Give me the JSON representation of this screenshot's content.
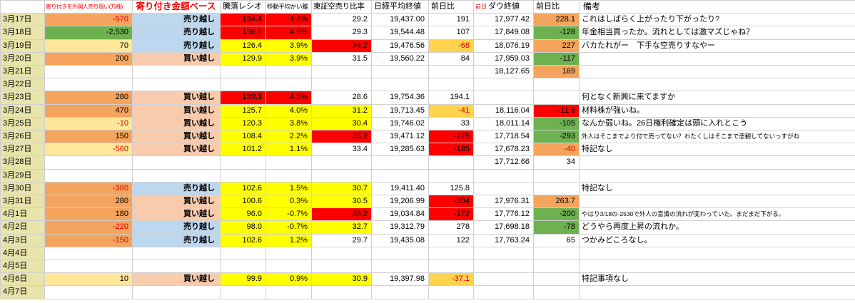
{
  "columns": {
    "b_header": "寄り付きを外国人売り買い(万株)",
    "c_header": "寄り付き金額ベース",
    "d_header": "騰落レシオ",
    "e_header": "移動平均かい離",
    "f_header": "東証空売り比率",
    "g_header": "日経平均終値",
    "h_header": "前日比",
    "i_header_prefix": "前日",
    "i_header": "ダウ終値",
    "j_header": "前日比",
    "k_header": "備考"
  },
  "colors": {
    "org": "#f4a45c",
    "peach": "#f8cbad",
    "blue": "#bdd7ee",
    "green": "#6eb150",
    "pale": "#ffe699",
    "red": "#fe0000",
    "yel": "#ffff00",
    "gold": "#ffd34d",
    "date_bg": "#e8e4ab",
    "grid": "#d0d0d0",
    "header_red": "#ff0000",
    "neg_text": "#e00000"
  },
  "rows": [
    {
      "date": "3月17日",
      "b": [
        "-570",
        "org"
      ],
      "c": [
        "売り越し",
        "blue"
      ],
      "d": [
        "134.4",
        "red"
      ],
      "e": [
        "4.4%",
        "red"
      ],
      "f": [
        "29.2",
        ""
      ],
      "g": [
        "19,437.00",
        ""
      ],
      "h": [
        "191",
        ""
      ],
      "i": [
        "17,977.42",
        ""
      ],
      "j": [
        "228.1",
        "org"
      ],
      "k": [
        "これはしばらく上がったり下がったり?",
        ""
      ]
    },
    {
      "date": "3月18日",
      "b": [
        "-2,530",
        "green"
      ],
      "c": [
        "売り越し",
        "blue"
      ],
      "d": [
        "136.1",
        "red"
      ],
      "e": [
        "4.5%",
        "red"
      ],
      "f": [
        "29.3",
        ""
      ],
      "g": [
        "19,544.48",
        ""
      ],
      "h": [
        "107",
        ""
      ],
      "i": [
        "17,849.08",
        ""
      ],
      "j": [
        "-128",
        "green"
      ],
      "k": [
        "年金相当買ったか。流れとしては激マズじゃね？",
        ""
      ]
    },
    {
      "date": "3月19日",
      "b": [
        "70",
        "pale"
      ],
      "c": [
        "売り越し",
        "blue"
      ],
      "d": [
        "126.4",
        "yel"
      ],
      "e": [
        "3.9%",
        "yel"
      ],
      "f": [
        "34.2",
        "red"
      ],
      "g": [
        "19,476.56",
        ""
      ],
      "h": [
        "-68",
        "gold"
      ],
      "i": [
        "18,076.19",
        ""
      ],
      "j": [
        "227",
        "org"
      ],
      "k": [
        "バカたれがー　下手な空売りすなやー",
        ""
      ]
    },
    {
      "date": "3月20日",
      "b": [
        "200",
        "org"
      ],
      "c": [
        "買い越し",
        "peach"
      ],
      "d": [
        "129.9",
        "yel"
      ],
      "e": [
        "3.9%",
        "yel"
      ],
      "f": [
        "31.5",
        ""
      ],
      "g": [
        "19,560.22",
        ""
      ],
      "h": [
        "84",
        ""
      ],
      "i": [
        "17,959.03",
        ""
      ],
      "j": [
        "-117",
        "green"
      ],
      "k": [
        "",
        ""
      ]
    },
    {
      "date": "3月21日",
      "b": [
        "",
        ""
      ],
      "c": [
        "",
        ""
      ],
      "d": [
        "",
        ""
      ],
      "e": [
        "",
        ""
      ],
      "f": [
        "",
        ""
      ],
      "g": [
        "",
        ""
      ],
      "h": [
        "",
        ""
      ],
      "i": [
        "18,127.65",
        ""
      ],
      "j": [
        "169",
        "org"
      ],
      "k": [
        "",
        ""
      ]
    },
    {
      "date": "3月22日",
      "b": [
        "",
        ""
      ],
      "c": [
        "",
        ""
      ],
      "d": [
        "",
        ""
      ],
      "e": [
        "",
        ""
      ],
      "f": [
        "",
        ""
      ],
      "g": [
        "",
        ""
      ],
      "h": [
        "",
        ""
      ],
      "i": [
        "",
        ""
      ],
      "j": [
        "",
        ""
      ],
      "k": [
        "",
        ""
      ]
    },
    {
      "date": "3月23日",
      "b": [
        "280",
        "org"
      ],
      "c": [
        "買い越し",
        "peach"
      ],
      "d": [
        "130.3",
        "red"
      ],
      "e": [
        "4.5%",
        "red"
      ],
      "f": [
        "28.6",
        ""
      ],
      "g": [
        "19,754.36",
        ""
      ],
      "h": [
        "194.1",
        ""
      ],
      "i": [
        "",
        ""
      ],
      "j": [
        "",
        ""
      ],
      "k": [
        "何となく新興に来てますか",
        ""
      ]
    },
    {
      "date": "3月24日",
      "b": [
        "470",
        "org"
      ],
      "c": [
        "買い越し",
        "peach"
      ],
      "d": [
        "125.7",
        "yel"
      ],
      "e": [
        "4.0%",
        "yel"
      ],
      "f": [
        "31.2",
        "yel"
      ],
      "g": [
        "19,713.45",
        ""
      ],
      "h": [
        "-41",
        "gold"
      ],
      "i": [
        "18,116.04",
        ""
      ],
      "j": [
        "-11.6",
        "red"
      ],
      "k": [
        "材料株が強いね。",
        ""
      ]
    },
    {
      "date": "3月25日",
      "b": [
        "-10",
        "pale"
      ],
      "c": [
        "買い越し",
        "peach"
      ],
      "d": [
        "120.3",
        "yel"
      ],
      "e": [
        "3.8%",
        "yel"
      ],
      "f": [
        "30.4",
        "yel"
      ],
      "g": [
        "19,746.02",
        ""
      ],
      "h": [
        "33",
        ""
      ],
      "i": [
        "18,011.14",
        ""
      ],
      "j": [
        "-105",
        "green"
      ],
      "k": [
        "なんか弱いね。26日権利確定は頭に入れとこう",
        ""
      ]
    },
    {
      "date": "3月26日",
      "b": [
        "150",
        "org"
      ],
      "c": [
        "買い越し",
        "peach"
      ],
      "d": [
        "108.4",
        "yel"
      ],
      "e": [
        "2.2%",
        "yel"
      ],
      "f": [
        "35.2",
        "red"
      ],
      "g": [
        "19,471.12",
        ""
      ],
      "h": [
        "-275",
        "red"
      ],
      "i": [
        "17,718.54",
        ""
      ],
      "j": [
        "-293",
        "green"
      ],
      "k": [
        "外人はそこまでより付で売ってない？わたくしはそこまで悲観してないっすがね",
        "small"
      ]
    },
    {
      "date": "3月27日",
      "b": [
        "-560",
        "pale"
      ],
      "c": [
        "買い越し",
        "peach"
      ],
      "d": [
        "101.2",
        "yel"
      ],
      "e": [
        "1.1%",
        "yel"
      ],
      "f": [
        "33.4",
        ""
      ],
      "g": [
        "19,285.63",
        ""
      ],
      "h": [
        "-185",
        "red"
      ],
      "i": [
        "17,678.23",
        ""
      ],
      "j": [
        "-40",
        "org"
      ],
      "k": [
        "特記なし",
        ""
      ]
    },
    {
      "date": "3月28日",
      "b": [
        "",
        ""
      ],
      "c": [
        "",
        ""
      ],
      "d": [
        "",
        ""
      ],
      "e": [
        "",
        ""
      ],
      "f": [
        "",
        ""
      ],
      "g": [
        "",
        ""
      ],
      "h": [
        "",
        ""
      ],
      "i": [
        "17,712.66",
        ""
      ],
      "j": [
        "34",
        ""
      ],
      "k": [
        "",
        ""
      ]
    },
    {
      "date": "3月29日",
      "b": [
        "",
        ""
      ],
      "c": [
        "",
        ""
      ],
      "d": [
        "",
        ""
      ],
      "e": [
        "",
        ""
      ],
      "f": [
        "",
        ""
      ],
      "g": [
        "",
        ""
      ],
      "h": [
        "",
        ""
      ],
      "i": [
        "",
        ""
      ],
      "j": [
        "",
        ""
      ],
      "k": [
        "",
        ""
      ]
    },
    {
      "date": "3月30日",
      "b": [
        "-380",
        "org"
      ],
      "c": [
        "売り越し",
        "blue"
      ],
      "d": [
        "102.6",
        "yel"
      ],
      "e": [
        "1.5%",
        "yel"
      ],
      "f": [
        "30.7",
        "yel"
      ],
      "g": [
        "19,411.40",
        ""
      ],
      "h": [
        "125.8",
        ""
      ],
      "i": [
        "",
        ""
      ],
      "j": [
        "",
        ""
      ],
      "k": [
        "特記なし",
        ""
      ]
    },
    {
      "date": "3月31日",
      "b": [
        "280",
        "org"
      ],
      "c": [
        "買い越し",
        "peach"
      ],
      "d": [
        "100.6",
        "yel"
      ],
      "e": [
        "0.3%",
        "yel"
      ],
      "f": [
        "30.5",
        "yel"
      ],
      "g": [
        "19,206.99",
        ""
      ],
      "h": [
        "-204",
        "red"
      ],
      "i": [
        "17,976.31",
        ""
      ],
      "j": [
        "263.7",
        "org"
      ],
      "k": [
        "",
        ""
      ]
    },
    {
      "date": "4月1日",
      "b": [
        "180",
        "org"
      ],
      "c": [
        "買い越し",
        "peach"
      ],
      "d": [
        "96.0",
        "yel"
      ],
      "e": [
        "-0.7%",
        "yel"
      ],
      "f": [
        "36.2",
        "red"
      ],
      "g": [
        "19,034.84",
        ""
      ],
      "h": [
        "-172",
        "red"
      ],
      "i": [
        "17,776.12",
        ""
      ],
      "j": [
        "-200",
        "green"
      ],
      "k": [
        "やはり3/18の-2530で外人の意識の流れが変わっていた。まだまだ下がる。",
        "small"
      ]
    },
    {
      "date": "4月2日",
      "b": [
        "-220",
        "org"
      ],
      "c": [
        "売り越し",
        "blue"
      ],
      "d": [
        "98.0",
        "yel"
      ],
      "e": [
        "-0.7%",
        "yel"
      ],
      "f": [
        "32.7",
        "yel"
      ],
      "g": [
        "19,312.79",
        ""
      ],
      "h": [
        "278",
        ""
      ],
      "i": [
        "17,698.18",
        ""
      ],
      "j": [
        "-78",
        "green"
      ],
      "k": [
        "どうやら再度上昇の流れか。",
        ""
      ]
    },
    {
      "date": "4月3日",
      "b": [
        "-150",
        "org"
      ],
      "c": [
        "売り越し",
        "blue"
      ],
      "d": [
        "102.6",
        "yel"
      ],
      "e": [
        "1.2%",
        "yel"
      ],
      "f": [
        "29.7",
        ""
      ],
      "g": [
        "19,435.08",
        ""
      ],
      "h": [
        "122",
        ""
      ],
      "i": [
        "17,763.24",
        ""
      ],
      "j": [
        "65",
        ""
      ],
      "k": [
        "つかみどころなし。",
        ""
      ]
    },
    {
      "date": "4月4日",
      "b": [
        "",
        ""
      ],
      "c": [
        "",
        ""
      ],
      "d": [
        "",
        ""
      ],
      "e": [
        "",
        ""
      ],
      "f": [
        "",
        ""
      ],
      "g": [
        "",
        ""
      ],
      "h": [
        "",
        ""
      ],
      "i": [
        "",
        ""
      ],
      "j": [
        "",
        ""
      ],
      "k": [
        "",
        ""
      ]
    },
    {
      "date": "4月5日",
      "b": [
        "",
        ""
      ],
      "c": [
        "",
        ""
      ],
      "d": [
        "",
        ""
      ],
      "e": [
        "",
        ""
      ],
      "f": [
        "",
        ""
      ],
      "g": [
        "",
        ""
      ],
      "h": [
        "",
        ""
      ],
      "i": [
        "",
        ""
      ],
      "j": [
        "",
        ""
      ],
      "k": [
        "",
        ""
      ]
    },
    {
      "date": "4月6日",
      "b": [
        "10",
        "pale"
      ],
      "c": [
        "買い越し",
        "peach"
      ],
      "d": [
        "99.9",
        "yel"
      ],
      "e": [
        "0.9%",
        "yel"
      ],
      "f": [
        "30.9",
        "yel"
      ],
      "g": [
        "19,397.98",
        ""
      ],
      "h": [
        "-37.1",
        "gold"
      ],
      "i": [
        "",
        ""
      ],
      "j": [
        "",
        ""
      ],
      "k": [
        "特記事項なし",
        ""
      ]
    },
    {
      "date": "4月7日",
      "b": [
        "",
        ""
      ],
      "c": [
        "",
        ""
      ],
      "d": [
        "",
        ""
      ],
      "e": [
        "",
        ""
      ],
      "f": [
        "",
        ""
      ],
      "g": [
        "",
        ""
      ],
      "h": [
        "",
        ""
      ],
      "i": [
        "",
        ""
      ],
      "j": [
        "",
        ""
      ],
      "k": [
        "",
        ""
      ]
    }
  ]
}
